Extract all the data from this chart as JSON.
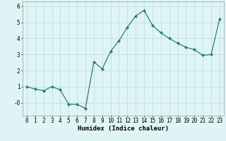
{
  "x": [
    0,
    1,
    2,
    3,
    4,
    5,
    6,
    7,
    8,
    9,
    10,
    11,
    12,
    13,
    14,
    15,
    16,
    17,
    18,
    19,
    20,
    21,
    22,
    23
  ],
  "y": [
    1.0,
    0.85,
    0.75,
    1.0,
    0.8,
    -0.1,
    -0.1,
    -0.35,
    2.55,
    2.1,
    3.2,
    3.85,
    4.7,
    5.4,
    5.75,
    4.8,
    4.35,
    4.0,
    3.7,
    3.45,
    3.3,
    2.95,
    3.0,
    5.2
  ],
  "line_color": "#2d7d6e",
  "marker": "D",
  "marker_size": 2.0,
  "bg_color": "#dff5f5",
  "grid_color": "#c0dede",
  "xlabel": "Humidex (Indice chaleur)",
  "ylim": [
    -0.8,
    6.3
  ],
  "xlim": [
    -0.5,
    23.5
  ],
  "yticks": [
    0,
    1,
    2,
    3,
    4,
    5,
    6
  ],
  "ytick_labels": [
    "-0",
    "1",
    "2",
    "3",
    "4",
    "5",
    "6"
  ],
  "xticks": [
    0,
    1,
    2,
    3,
    4,
    5,
    6,
    7,
    8,
    9,
    10,
    11,
    12,
    13,
    14,
    15,
    16,
    17,
    18,
    19,
    20,
    21,
    22,
    23
  ],
  "axis_fontsize": 6.0,
  "tick_fontsize": 5.5,
  "xlabel_fontsize": 6.5
}
